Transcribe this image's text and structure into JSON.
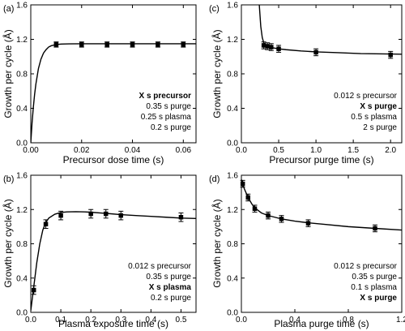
{
  "chart_data": [
    {
      "type": "scatter",
      "panel_label": "(a)",
      "xlabel": "Precursor dose time (s)",
      "ylabel": "Growth per cycle (Å)",
      "xlim": [
        0,
        0.065
      ],
      "ylim": [
        0,
        1.6
      ],
      "xticks": [
        0.0,
        0.02,
        0.04,
        0.06
      ],
      "xtick_labels": [
        "0.00",
        "0.02",
        "0.04",
        "0.06"
      ],
      "yticks": [
        0,
        0.4,
        0.8,
        1.2,
        1.6
      ],
      "ytick_labels": [
        "0.0",
        "0.4",
        "0.8",
        "1.2",
        "1.6"
      ],
      "series": [
        {
          "x": [
            0.01,
            0.02,
            0.03,
            0.04,
            0.05,
            0.06
          ],
          "y": [
            1.14,
            1.14,
            1.14,
            1.14,
            1.14,
            1.14
          ],
          "yerr": [
            0.03,
            0.03,
            0.03,
            0.03,
            0.03,
            0.03
          ]
        }
      ],
      "fit_curve": {
        "x": [
          0,
          0.0005,
          0.001,
          0.0015,
          0.002,
          0.003,
          0.004,
          0.005,
          0.006,
          0.007,
          0.008,
          0.01,
          0.012,
          0.015,
          0.02,
          0.03,
          0.04,
          0.05,
          0.065
        ],
        "y": [
          0,
          0.23,
          0.41,
          0.56,
          0.68,
          0.86,
          0.97,
          1.04,
          1.08,
          1.11,
          1.125,
          1.14,
          1.145,
          1.148,
          1.149,
          1.149,
          1.149,
          1.149,
          1.149
        ]
      },
      "annotation": [
        {
          "text": "X  s precursor",
          "bold": true
        },
        {
          "text": "0.35 s purge",
          "bold": false
        },
        {
          "text": "0.25 s plasma",
          "bold": false
        },
        {
          "text": "0.2  s purge",
          "bold": false
        }
      ]
    },
    {
      "type": "scatter",
      "panel_label": "(c)",
      "xlabel": "Precursor purge time (s)",
      "ylabel": "Growth per cycle (Å)",
      "xlim": [
        0,
        2.15
      ],
      "ylim": [
        0,
        1.6
      ],
      "xticks": [
        0.0,
        0.5,
        1.0,
        1.5,
        2.0
      ],
      "xtick_labels": [
        "0.0",
        "0.5",
        "1.0",
        "1.5",
        "2.0"
      ],
      "yticks": [
        0,
        0.4,
        0.8,
        1.2,
        1.6
      ],
      "ytick_labels": [
        "0.0",
        "0.4",
        "0.8",
        "1.2",
        "1.6"
      ],
      "series": [
        {
          "x": [
            0.3,
            0.35,
            0.4,
            0.5,
            1.0,
            2.0
          ],
          "y": [
            1.13,
            1.12,
            1.11,
            1.09,
            1.05,
            1.02
          ],
          "yerr": [
            0.04,
            0.04,
            0.04,
            0.04,
            0.04,
            0.04
          ]
        }
      ],
      "fit_curve": {
        "x": [
          0.24,
          0.26,
          0.28,
          0.3,
          0.35,
          0.4,
          0.5,
          0.6,
          0.8,
          1.0,
          1.3,
          1.6,
          2.0,
          2.15
        ],
        "y": [
          1.6,
          1.35,
          1.22,
          1.16,
          1.12,
          1.105,
          1.09,
          1.08,
          1.065,
          1.055,
          1.045,
          1.035,
          1.03,
          1.028
        ]
      },
      "annotation": [
        {
          "text": "0.012 s precursor",
          "bold": false
        },
        {
          "text": "X  s purge",
          "bold": true
        },
        {
          "text": "0.5  s plasma",
          "bold": false
        },
        {
          "text": "2  s purge",
          "bold": false
        }
      ]
    },
    {
      "type": "scatter",
      "panel_label": "(b)",
      "xlabel": "Plasma exposure time (s)",
      "ylabel": "Growth per cycle (Å)",
      "xlim": [
        0,
        0.55
      ],
      "ylim": [
        0,
        1.6
      ],
      "xticks": [
        0.0,
        0.1,
        0.2,
        0.3,
        0.4,
        0.5
      ],
      "xtick_labels": [
        "0.0",
        "0.1",
        "0.2",
        "0.3",
        "0.4",
        "0.5"
      ],
      "yticks": [
        0,
        0.4,
        0.8,
        1.2,
        1.6
      ],
      "ytick_labels": [
        "0.0",
        "0.4",
        "0.8",
        "1.2",
        "1.6"
      ],
      "series": [
        {
          "x": [
            0.01,
            0.05,
            0.1,
            0.2,
            0.25,
            0.3,
            0.5
          ],
          "y": [
            0.26,
            1.03,
            1.13,
            1.15,
            1.15,
            1.13,
            1.11
          ],
          "yerr": [
            0.05,
            0.05,
            0.05,
            0.05,
            0.05,
            0.05,
            0.05
          ]
        }
      ],
      "fit_curve": {
        "x": [
          0,
          0.01,
          0.02,
          0.03,
          0.04,
          0.05,
          0.06,
          0.08,
          0.1,
          0.12,
          0.15,
          0.18,
          0.2,
          0.25,
          0.3,
          0.35,
          0.4,
          0.45,
          0.5,
          0.55
        ],
        "y": [
          0.02,
          0.3,
          0.58,
          0.8,
          0.96,
          1.05,
          1.1,
          1.145,
          1.165,
          1.172,
          1.175,
          1.172,
          1.168,
          1.155,
          1.14,
          1.13,
          1.12,
          1.11,
          1.1,
          1.095
        ]
      },
      "annotation": [
        {
          "text": "0.012 s precursor",
          "bold": false
        },
        {
          "text": "0.35 s purge",
          "bold": false
        },
        {
          "text": "X  s plasma",
          "bold": true
        },
        {
          "text": "0.2  s purge",
          "bold": false
        }
      ]
    },
    {
      "type": "scatter",
      "panel_label": "(d)",
      "xlabel": "Plasma purge time (s)",
      "ylabel": "Growth per cycle (Å)",
      "xlim": [
        0,
        1.2
      ],
      "ylim": [
        0,
        1.6
      ],
      "xticks": [
        0.0,
        0.4,
        0.8,
        1.2
      ],
      "xtick_labels": [
        "0.0",
        "0.4",
        "0.8",
        "1.2"
      ],
      "yticks": [
        0,
        0.4,
        0.8,
        1.2,
        1.6
      ],
      "ytick_labels": [
        "0.0",
        "0.4",
        "0.8",
        "1.2",
        "1.6"
      ],
      "series": [
        {
          "x": [
            0.01,
            0.05,
            0.1,
            0.2,
            0.3,
            0.5,
            1.0
          ],
          "y": [
            1.5,
            1.34,
            1.21,
            1.13,
            1.09,
            1.04,
            0.98
          ],
          "yerr": [
            0.04,
            0.04,
            0.04,
            0.04,
            0.04,
            0.04,
            0.04
          ]
        }
      ],
      "fit_curve": {
        "x": [
          0,
          0.02,
          0.05,
          0.08,
          0.1,
          0.15,
          0.2,
          0.3,
          0.4,
          0.5,
          0.6,
          0.8,
          1.0,
          1.2
        ],
        "y": [
          1.55,
          1.45,
          1.34,
          1.26,
          1.22,
          1.16,
          1.13,
          1.09,
          1.065,
          1.045,
          1.03,
          1.0,
          0.98,
          0.96
        ]
      },
      "annotation": [
        {
          "text": "0.012 s precursor",
          "bold": false
        },
        {
          "text": "0.35 s purge",
          "bold": false
        },
        {
          "text": "0.1  s plasma",
          "bold": false
        },
        {
          "text": "X  s purge",
          "bold": true
        }
      ]
    }
  ]
}
